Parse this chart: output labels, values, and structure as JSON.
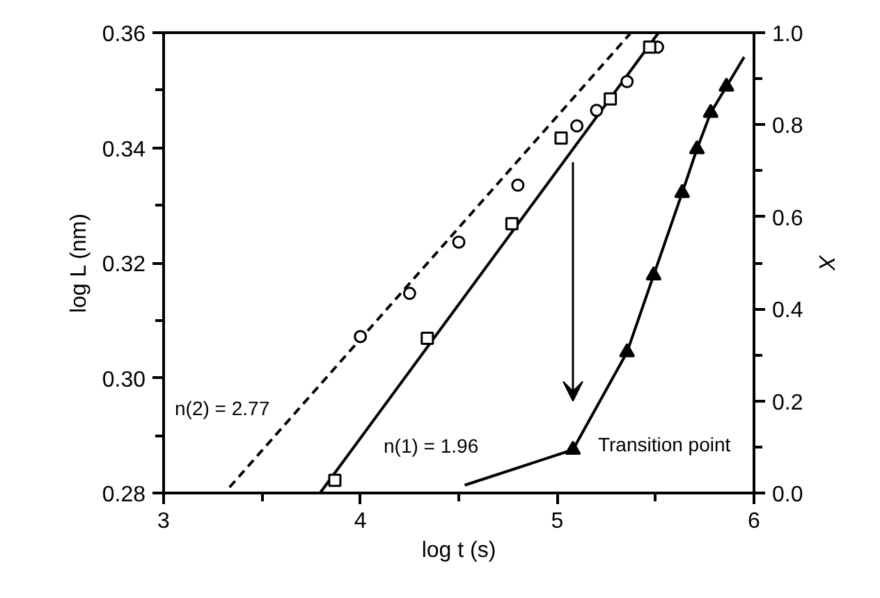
{
  "chart_data": {
    "type": "line",
    "xlabel": "log t (s)",
    "ylabel": "log L (nm)",
    "y2label": "X",
    "xlim": [
      3,
      6
    ],
    "ylim": [
      0.28,
      0.36
    ],
    "y2lim": [
      0,
      1
    ],
    "xticks": [
      3,
      {
        "value": 3.5,
        "label": null
      },
      4,
      {
        "value": 4.5,
        "label": null
      },
      5,
      {
        "value": 5.5,
        "label": null
      },
      6
    ],
    "yticks": [
      {
        "value": 0.28,
        "label": "0.28"
      },
      {
        "value": 0.29,
        "label": null
      },
      {
        "value": 0.3,
        "label": "0.30"
      },
      {
        "value": 0.31,
        "label": null
      },
      {
        "value": 0.32,
        "label": "0.32"
      },
      {
        "value": 0.33,
        "label": null
      },
      {
        "value": 0.34,
        "label": "0.34"
      },
      {
        "value": 0.35,
        "label": null
      },
      {
        "value": 0.36,
        "label": "0.36"
      }
    ],
    "y2ticks": [
      {
        "value": 0,
        "label": "0.0"
      },
      {
        "value": 0.1,
        "label": null
      },
      {
        "value": 0.2,
        "label": "0.2"
      },
      {
        "value": 0.3,
        "label": null
      },
      {
        "value": 0.4,
        "label": "0.4"
      },
      {
        "value": 0.5,
        "label": null
      },
      {
        "value": 0.6,
        "label": "0.6"
      },
      {
        "value": 0.7,
        "label": null
      },
      {
        "value": 0.8,
        "label": "0.8"
      },
      {
        "value": 0.9,
        "label": null
      },
      {
        "value": 1,
        "label": "1.0"
      }
    ],
    "grid": false,
    "series": [
      {
        "color": "#000000",
        "line_style": "dashed",
        "marker": "none",
        "x": [
          3.335,
          5.37
        ],
        "values": [
          0.281,
          0.3598
        ]
      },
      {
        "color": "#000000",
        "line_style": "solid",
        "marker": "none",
        "x": [
          3.795,
          5.515
        ],
        "values": [
          0.28,
          0.36
        ]
      },
      {
        "type": "scatter",
        "color": "#000000",
        "marker": "circle",
        "x": [
          4.0,
          4.25,
          4.5,
          4.8,
          5.1,
          5.2,
          5.355,
          5.51
        ],
        "values": [
          0.3072,
          0.3147,
          0.3236,
          0.3335,
          0.3438,
          0.3465,
          0.3515,
          0.3575
        ]
      },
      {
        "type": "scatter",
        "color": "#000000",
        "marker": "square",
        "x": [
          3.87,
          4.34,
          4.77,
          5.02,
          5.27,
          5.47
        ],
        "values": [
          0.2822,
          0.3069,
          0.3268,
          0.3417,
          0.3485,
          0.3575
        ]
      },
      {
        "color": "#000000",
        "line_style": "solid",
        "marker": "none",
        "axis": "y2",
        "x": [
          4.53,
          5.08,
          5.355,
          5.49,
          5.635,
          5.71,
          5.78,
          5.86,
          5.95
        ],
        "values": [
          0.017,
          0.094,
          0.306,
          0.473,
          0.652,
          0.747,
          0.826,
          0.883,
          0.947
        ]
      },
      {
        "type": "scatter",
        "color": "#000000",
        "marker": "triangle",
        "axis": "y2",
        "x": [
          5.08,
          5.355,
          5.49,
          5.635,
          5.71,
          5.78,
          5.86
        ],
        "values": [
          0.094,
          0.306,
          0.473,
          0.652,
          0.747,
          0.826,
          0.883
        ]
      }
    ],
    "annotations": [
      "n(2) = 2.77",
      "n(1) = 1.96",
      {
        "text": "Transition point",
        "x": 5.08,
        "y": 0.2875
      }
    ]
  }
}
